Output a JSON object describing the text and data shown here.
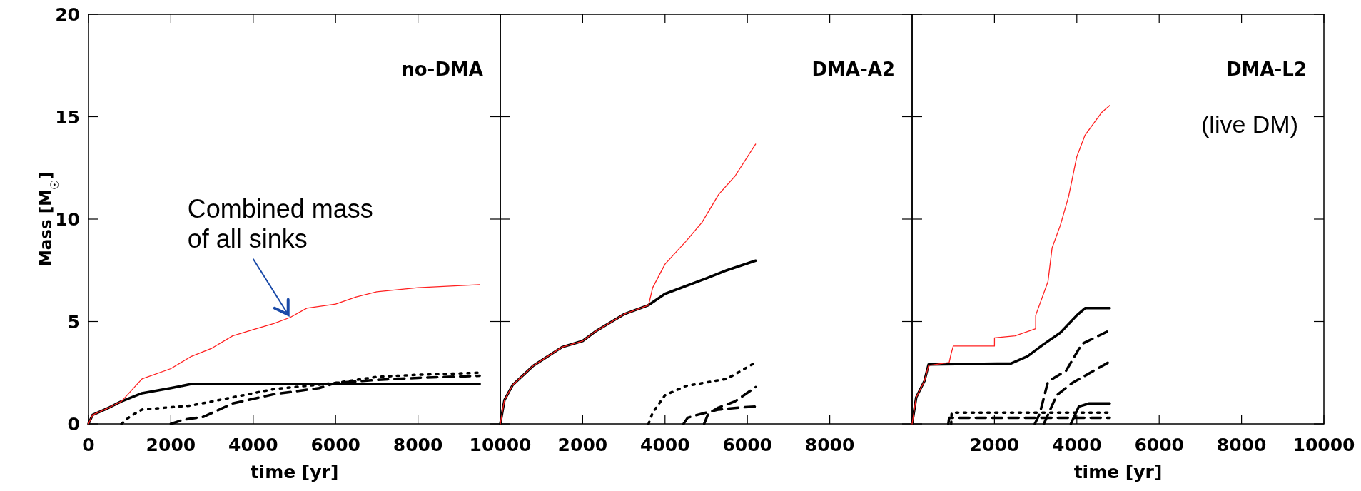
{
  "chart_data": [
    {
      "type": "line",
      "title": "no-DMA",
      "xlabel": "time [yr]",
      "ylabel": "Mass [M$_{☉}$]",
      "xlim": [
        0,
        10000
      ],
      "xticks": [
        0,
        2000,
        4000,
        6000,
        8000,
        10000
      ],
      "ylim": [
        0,
        20
      ],
      "yticks": [
        0,
        5,
        10,
        15,
        20
      ],
      "grid": false,
      "annotations": [
        {
          "text": "Combined mass of all sinks",
          "x": 4900,
          "y": 5.2
        }
      ],
      "series": [
        {
          "color": "#000000",
          "line_style": "solid",
          "x": [
            0,
            100,
            500,
            800,
            1300,
            2000,
            2500,
            9500
          ],
          "values": [
            0,
            0.44,
            0.8,
            1.1,
            1.5,
            1.75,
            1.95,
            1.95
          ]
        },
        {
          "color": "#000000",
          "line_style": "dotted",
          "x": [
            800,
            1000,
            1300,
            2500,
            3500,
            4500,
            6000,
            7000,
            8000,
            9500
          ],
          "values": [
            0,
            0.35,
            0.7,
            0.9,
            1.3,
            1.7,
            2.0,
            2.3,
            2.4,
            2.5
          ]
        },
        {
          "color": "#000000",
          "line_style": "dashed",
          "x": [
            2000,
            2300,
            2800,
            3500,
            4500,
            5600,
            6000,
            7000,
            8000,
            9500
          ],
          "values": [
            0,
            0.2,
            0.35,
            1.0,
            1.45,
            1.75,
            2.0,
            2.15,
            2.25,
            2.35
          ]
        },
        {
          "color": "#ff2020",
          "line_style": "solid",
          "x": [
            0,
            100,
            500,
            800,
            1300,
            2000,
            2500,
            3000,
            3500,
            4000,
            4500,
            4900,
            5300,
            6000,
            6500,
            7000,
            8000,
            9500
          ],
          "values": [
            0,
            0.44,
            0.8,
            1.1,
            2.2,
            2.7,
            3.3,
            3.7,
            4.3,
            4.6,
            4.9,
            5.2,
            5.65,
            5.85,
            6.2,
            6.45,
            6.65,
            6.8
          ]
        }
      ]
    },
    {
      "type": "line",
      "title": "DMA-A2",
      "xlim": [
        0,
        10000
      ],
      "xticks": [
        2000,
        4000,
        6000,
        8000
      ],
      "ylim": [
        0,
        20
      ],
      "yticks": [
        0,
        5,
        10,
        15,
        20
      ],
      "tick_labels": "x",
      "grid": false,
      "series": [
        {
          "color": "#000000",
          "line_style": "solid",
          "x": [
            0,
            100,
            300,
            800,
            1500,
            2000,
            2300,
            3000,
            3600,
            4000,
            5000,
            5500,
            6200
          ],
          "values": [
            0,
            1.16,
            1.9,
            2.84,
            3.75,
            4.05,
            4.5,
            5.35,
            5.8,
            6.35,
            7.1,
            7.5,
            7.97
          ]
        },
        {
          "color": "#000000",
          "line_style": "dotted",
          "x": [
            3600,
            3700,
            4000,
            4500,
            5500,
            6200
          ],
          "values": [
            0,
            0.55,
            1.4,
            1.85,
            2.2,
            3.0
          ]
        },
        {
          "color": "#000000",
          "line_style": "dashed",
          "x": [
            4450,
            4550,
            4800,
            5300,
            5800,
            6200
          ],
          "values": [
            0,
            0.3,
            0.45,
            0.7,
            0.8,
            0.85
          ]
        },
        {
          "color": "#000000",
          "line_style": "dashed",
          "x": [
            4950,
            5050,
            5300,
            5700,
            6200
          ],
          "values": [
            0,
            0.5,
            0.8,
            1.1,
            1.8
          ]
        },
        {
          "color": "#ff2020",
          "line_style": "solid",
          "x": [
            0,
            100,
            300,
            800,
            1500,
            2000,
            2300,
            3000,
            3600,
            3700,
            4000,
            4500,
            4900,
            5300,
            5700,
            6200
          ],
          "values": [
            0,
            1.16,
            1.9,
            2.84,
            3.75,
            4.05,
            4.5,
            5.35,
            5.8,
            6.65,
            7.8,
            8.9,
            9.85,
            11.2,
            12.1,
            13.66
          ]
        }
      ]
    },
    {
      "type": "line",
      "title": "DMA-L2",
      "xlabel": "time [yr]",
      "xlim": [
        0,
        10000
      ],
      "xticks": [
        2000,
        4000,
        6000,
        8000,
        10000
      ],
      "ylim": [
        0,
        20
      ],
      "yticks": [
        0,
        5,
        10,
        15,
        20
      ],
      "tick_labels": "x",
      "grid": false,
      "annotations": [
        "(live DM)"
      ],
      "series": [
        {
          "color": "#000000",
          "line_style": "solid",
          "x": [
            0,
            100,
            300,
            400,
            2400,
            2800,
            3200,
            3600,
            4000,
            4200,
            4800
          ],
          "values": [
            0,
            1.3,
            2.1,
            2.9,
            2.95,
            3.3,
            3.9,
            4.45,
            5.3,
            5.65,
            5.65
          ]
        },
        {
          "color": "#000000",
          "line_style": "dashed",
          "x": [
            2980,
            3100,
            3300,
            3740,
            4120,
            4730
          ],
          "values": [
            0,
            0.5,
            2.07,
            2.6,
            3.9,
            4.5
          ]
        },
        {
          "color": "#000000",
          "line_style": "dashed",
          "x": [
            3200,
            3510,
            3890,
            4500,
            4810
          ],
          "values": [
            0,
            1.4,
            2.0,
            2.7,
            3.05
          ]
        },
        {
          "color": "#000000",
          "line_style": "solid",
          "x": [
            3855,
            4050,
            4300,
            4800
          ],
          "values": [
            0,
            0.85,
            1.0,
            1.0
          ]
        },
        {
          "color": "#000000",
          "line_style": "dotted",
          "x": [
            950,
            960,
            4800
          ],
          "values": [
            0,
            0.55,
            0.55
          ]
        },
        {
          "color": "#000000",
          "line_style": "dashed",
          "x": [
            880,
            900,
            4800
          ],
          "values": [
            0,
            0.3,
            0.3
          ]
        },
        {
          "color": "#ff2020",
          "line_style": "solid",
          "x": [
            0,
            100,
            300,
            400,
            900,
            950,
            1000,
            2000,
            2001,
            2500,
            3000,
            3001,
            3300,
            3400,
            3600,
            3800,
            4000,
            4200,
            4600,
            4800
          ],
          "values": [
            0,
            1.3,
            2.1,
            2.85,
            3.0,
            3.45,
            3.8,
            3.8,
            4.2,
            4.3,
            4.65,
            5.3,
            6.95,
            8.6,
            9.7,
            11.1,
            13.05,
            14.1,
            15.2,
            15.55
          ]
        }
      ]
    }
  ]
}
